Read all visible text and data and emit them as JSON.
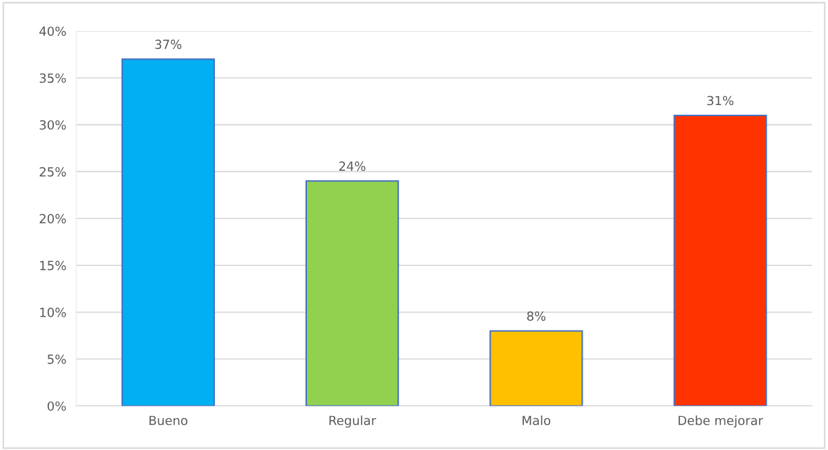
{
  "chart_data": {
    "type": "bar",
    "categories": [
      "Bueno",
      "Regular",
      "Malo",
      "Debe mejorar"
    ],
    "values": [
      37,
      24,
      8,
      31
    ],
    "colors": [
      "#00b0f0",
      "#92d050",
      "#ffc000",
      "#ff3300"
    ],
    "value_labels": [
      "37%",
      "24%",
      "8%",
      "31%"
    ],
    "ylim": [
      0,
      40
    ],
    "yticks": [
      {
        "value": 0,
        "label": "0%"
      },
      {
        "value": 5,
        "label": "5%"
      },
      {
        "value": 10,
        "label": "10%"
      },
      {
        "value": 15,
        "label": "15%"
      },
      {
        "value": 20,
        "label": "20%"
      },
      {
        "value": 25,
        "label": "25%"
      },
      {
        "value": 30,
        "label": "30%"
      },
      {
        "value": 35,
        "label": "35%"
      },
      {
        "value": 40,
        "label": "40%"
      }
    ],
    "grid": "y",
    "legend": false
  }
}
